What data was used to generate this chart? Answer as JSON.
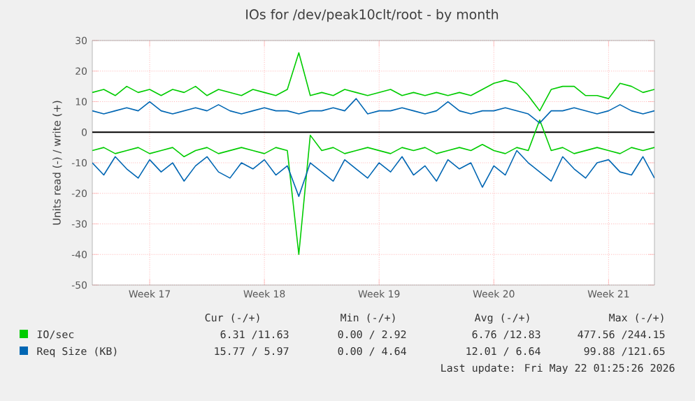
{
  "chart_data": {
    "type": "line",
    "title": "IOs for /dev/peak10clt/root - by month",
    "ylabel": "Units read (-) / write (+)",
    "categories": [
      null,
      null,
      null,
      null,
      null,
      "Week 17",
      null,
      null,
      null,
      null,
      null,
      null,
      null,
      null,
      null,
      "Week 18",
      null,
      null,
      null,
      null,
      null,
      null,
      null,
      null,
      null,
      "Week 19",
      null,
      null,
      null,
      null,
      null,
      null,
      null,
      null,
      null,
      "Week 20",
      null,
      null,
      null,
      null,
      null,
      null,
      null,
      null,
      null,
      "Week 21",
      null,
      null,
      null,
      null
    ],
    "series": [
      {
        "name": "IO/sec",
        "color": "#00cc00",
        "values": [
          13,
          14,
          12,
          15,
          13,
          14,
          12,
          14,
          13,
          15,
          12,
          14,
          13,
          12,
          14,
          13,
          12,
          14,
          26,
          12,
          13,
          12,
          14,
          13,
          12,
          13,
          14,
          12,
          13,
          12,
          13,
          12,
          13,
          12,
          14,
          16,
          17,
          16,
          12,
          7,
          14,
          15,
          15,
          12,
          12,
          11,
          16,
          15,
          13,
          14
        ]
      },
      {
        "color": "#00cc00",
        "values": [
          -6,
          -5,
          -7,
          -6,
          -5,
          -7,
          -6,
          -5,
          -8,
          -6,
          -5,
          -7,
          -6,
          -5,
          -6,
          -7,
          -5,
          -6,
          -40,
          -1,
          -6,
          -5,
          -7,
          -6,
          -5,
          -6,
          -7,
          -5,
          -6,
          -5,
          -7,
          -6,
          -5,
          -6,
          -4,
          -6,
          -7,
          -5,
          -6,
          4,
          -6,
          -5,
          -7,
          -6,
          -5,
          -6,
          -7,
          -5,
          -6,
          -5
        ]
      },
      {
        "name": "Req Size (KB)",
        "color": "#0066b3",
        "values": [
          7,
          6,
          7,
          8,
          7,
          10,
          7,
          6,
          7,
          8,
          7,
          9,
          7,
          6,
          7,
          8,
          7,
          7,
          6,
          7,
          7,
          8,
          7,
          11,
          6,
          7,
          7,
          8,
          7,
          6,
          7,
          10,
          7,
          6,
          7,
          7,
          8,
          7,
          6,
          3,
          7,
          7,
          8,
          7,
          6,
          7,
          9,
          7,
          6,
          7
        ]
      },
      {
        "color": "#0066b3",
        "values": [
          -10,
          -14,
          -8,
          -12,
          -15,
          -9,
          -13,
          -10,
          -16,
          -11,
          -8,
          -13,
          -15,
          -10,
          -12,
          -9,
          -14,
          -11,
          -21,
          -10,
          -13,
          -16,
          -9,
          -12,
          -15,
          -10,
          -13,
          -8,
          -14,
          -11,
          -16,
          -9,
          -12,
          -10,
          -18,
          -11,
          -14,
          -6,
          -10,
          -13,
          -16,
          -8,
          -12,
          -15,
          -10,
          -9,
          -13,
          -14,
          -8,
          -15
        ]
      }
    ],
    "ylim": [
      -50,
      30
    ],
    "yticks": [
      -50,
      -40,
      -30,
      -20,
      -10,
      0,
      10,
      20,
      30
    ],
    "grid": true,
    "legend": "bottom",
    "marker": "none",
    "line_style": "solid",
    "ref_lines": [
      {
        "axis": "y",
        "value": 0,
        "color": "#000000"
      }
    ],
    "annotations": [
      "Cur (-/+)",
      "Min (-/+)",
      "Avg (-/+)",
      "Max (-/+)",
      "6.31 /11.63",
      "0.00 / 2.92",
      "6.76 /12.83",
      "477.56 /244.15",
      "15.77 / 5.97",
      "0.00 / 4.64",
      "12.01 / 6.64",
      "99.88 /121.65",
      "Last update: Fri May 22 01:25:26 2026"
    ]
  }
}
